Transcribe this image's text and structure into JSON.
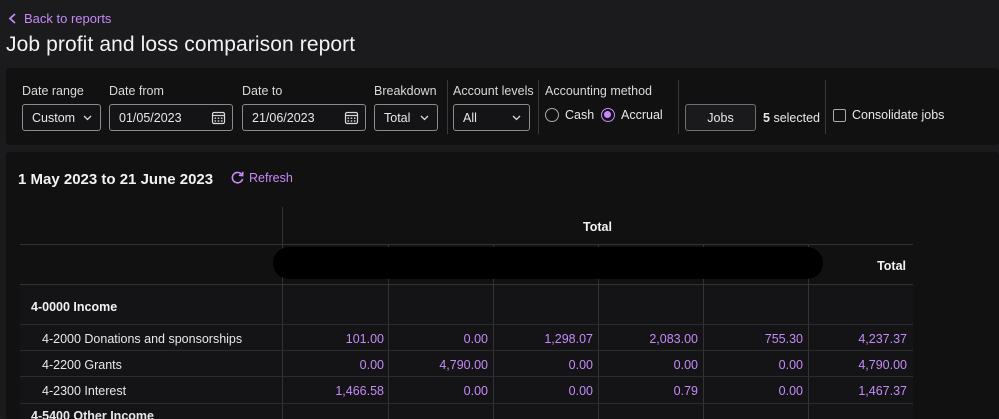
{
  "nav": {
    "back_label": "Back to reports"
  },
  "page": {
    "title": "Job profit and loss comparison report"
  },
  "filters": {
    "date_range": {
      "label": "Date range",
      "value": "Custom"
    },
    "date_from": {
      "label": "Date from",
      "value": "01/05/2023"
    },
    "date_to": {
      "label": "Date to",
      "value": "21/06/2023"
    },
    "breakdown": {
      "label": "Breakdown",
      "value": "Total"
    },
    "account_levels": {
      "label": "Account levels",
      "value": "All"
    },
    "accounting_method": {
      "label": "Accounting method",
      "options": [
        "Cash",
        "Accrual"
      ],
      "selected": "Accrual"
    },
    "jobs_button": "Jobs",
    "selected_count": "5",
    "selected_suffix": "selected",
    "consolidate_label": "Consolidate jobs",
    "consolidate_checked": false
  },
  "report": {
    "date_heading": "1 May 2023 to 21 June 2023",
    "refresh_label": "Refresh",
    "header_total": "Total",
    "column_total": "Total",
    "sections": [
      {
        "label": "4-0000 Income",
        "rows": [
          {
            "label": "4-2000 Donations and sponsorships",
            "values": [
              "101.00",
              "0.00",
              "1,298.07",
              "2,083.00",
              "755.30",
              "4,237.37"
            ]
          },
          {
            "label": "4-2200 Grants",
            "values": [
              "0.00",
              "4,790.00",
              "0.00",
              "0.00",
              "0.00",
              "4,790.00"
            ]
          },
          {
            "label": "4-2300 Interest",
            "values": [
              "1,466.58",
              "0.00",
              "0.00",
              "0.79",
              "0.00",
              "1,467.37"
            ]
          }
        ]
      },
      {
        "label": "4-5400 Other Income",
        "rows": []
      }
    ]
  },
  "colors": {
    "accent": "#c58af9",
    "background": "#1b1b1d",
    "panel": "#111112"
  }
}
